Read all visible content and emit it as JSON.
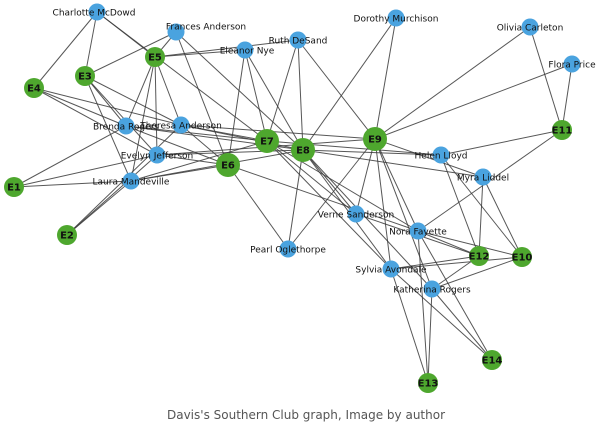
{
  "caption": "Davis's Southern Club graph, Image by author",
  "colors": {
    "woman": "#4aa3df",
    "event": "#4ea72e",
    "edge": "#3a3a3a",
    "label": "#111111"
  },
  "graph": {
    "women": [
      "Charlotte McDowd",
      "Frances Anderson",
      "Eleanor Nye",
      "Ruth DeSand",
      "Dorothy Murchison",
      "Olivia Carleton",
      "Flora Price",
      "Brenda Rogers",
      "Theresa Anderson",
      "Evelyn Jefferson",
      "Laura Mandeville",
      "Helen Lloyd",
      "Myra Liddel",
      "Verne Sanderson",
      "Nora Fayette",
      "Pearl Oglethorpe",
      "Sylvia Avondale",
      "Katherina Rogers"
    ],
    "events": [
      "E1",
      "E2",
      "E3",
      "E4",
      "E5",
      "E6",
      "E7",
      "E8",
      "E9",
      "E10",
      "E11",
      "E12",
      "E13",
      "E14"
    ],
    "edges": [
      [
        "Evelyn Jefferson",
        "E1"
      ],
      [
        "Evelyn Jefferson",
        "E2"
      ],
      [
        "Evelyn Jefferson",
        "E3"
      ],
      [
        "Evelyn Jefferson",
        "E4"
      ],
      [
        "Evelyn Jefferson",
        "E5"
      ],
      [
        "Evelyn Jefferson",
        "E6"
      ],
      [
        "Evelyn Jefferson",
        "E8"
      ],
      [
        "Evelyn Jefferson",
        "E9"
      ],
      [
        "Laura Mandeville",
        "E1"
      ],
      [
        "Laura Mandeville",
        "E2"
      ],
      [
        "Laura Mandeville",
        "E3"
      ],
      [
        "Laura Mandeville",
        "E5"
      ],
      [
        "Laura Mandeville",
        "E6"
      ],
      [
        "Laura Mandeville",
        "E7"
      ],
      [
        "Laura Mandeville",
        "E8"
      ],
      [
        "Theresa Anderson",
        "E2"
      ],
      [
        "Theresa Anderson",
        "E3"
      ],
      [
        "Theresa Anderson",
        "E4"
      ],
      [
        "Theresa Anderson",
        "E5"
      ],
      [
        "Theresa Anderson",
        "E6"
      ],
      [
        "Theresa Anderson",
        "E7"
      ],
      [
        "Theresa Anderson",
        "E8"
      ],
      [
        "Theresa Anderson",
        "E9"
      ],
      [
        "Brenda Rogers",
        "E1"
      ],
      [
        "Brenda Rogers",
        "E3"
      ],
      [
        "Brenda Rogers",
        "E4"
      ],
      [
        "Brenda Rogers",
        "E5"
      ],
      [
        "Brenda Rogers",
        "E6"
      ],
      [
        "Brenda Rogers",
        "E7"
      ],
      [
        "Brenda Rogers",
        "E8"
      ],
      [
        "Charlotte McDowd",
        "E3"
      ],
      [
        "Charlotte McDowd",
        "E4"
      ],
      [
        "Charlotte McDowd",
        "E5"
      ],
      [
        "Charlotte McDowd",
        "E7"
      ],
      [
        "Frances Anderson",
        "E3"
      ],
      [
        "Frances Anderson",
        "E5"
      ],
      [
        "Frances Anderson",
        "E6"
      ],
      [
        "Frances Anderson",
        "E8"
      ],
      [
        "Eleanor Nye",
        "E5"
      ],
      [
        "Eleanor Nye",
        "E6"
      ],
      [
        "Eleanor Nye",
        "E7"
      ],
      [
        "Eleanor Nye",
        "E8"
      ],
      [
        "Pearl Oglethorpe",
        "E6"
      ],
      [
        "Pearl Oglethorpe",
        "E8"
      ],
      [
        "Pearl Oglethorpe",
        "E9"
      ],
      [
        "Ruth DeSand",
        "E5"
      ],
      [
        "Ruth DeSand",
        "E7"
      ],
      [
        "Ruth DeSand",
        "E8"
      ],
      [
        "Ruth DeSand",
        "E9"
      ],
      [
        "Verne Sanderson",
        "E7"
      ],
      [
        "Verne Sanderson",
        "E8"
      ],
      [
        "Verne Sanderson",
        "E9"
      ],
      [
        "Verne Sanderson",
        "E12"
      ],
      [
        "Myra Liddel",
        "E8"
      ],
      [
        "Myra Liddel",
        "E9"
      ],
      [
        "Myra Liddel",
        "E10"
      ],
      [
        "Myra Liddel",
        "E12"
      ],
      [
        "Katherina Rogers",
        "E8"
      ],
      [
        "Katherina Rogers",
        "E9"
      ],
      [
        "Katherina Rogers",
        "E10"
      ],
      [
        "Katherina Rogers",
        "E12"
      ],
      [
        "Katherina Rogers",
        "E13"
      ],
      [
        "Katherina Rogers",
        "E14"
      ],
      [
        "Sylvia Avondale",
        "E7"
      ],
      [
        "Sylvia Avondale",
        "E8"
      ],
      [
        "Sylvia Avondale",
        "E9"
      ],
      [
        "Sylvia Avondale",
        "E10"
      ],
      [
        "Sylvia Avondale",
        "E12"
      ],
      [
        "Sylvia Avondale",
        "E13"
      ],
      [
        "Sylvia Avondale",
        "E14"
      ],
      [
        "Nora Fayette",
        "E6"
      ],
      [
        "Nora Fayette",
        "E7"
      ],
      [
        "Nora Fayette",
        "E9"
      ],
      [
        "Nora Fayette",
        "E10"
      ],
      [
        "Nora Fayette",
        "E11"
      ],
      [
        "Nora Fayette",
        "E12"
      ],
      [
        "Nora Fayette",
        "E13"
      ],
      [
        "Nora Fayette",
        "E14"
      ],
      [
        "Helen Lloyd",
        "E7"
      ],
      [
        "Helen Lloyd",
        "E8"
      ],
      [
        "Helen Lloyd",
        "E10"
      ],
      [
        "Helen Lloyd",
        "E11"
      ],
      [
        "Helen Lloyd",
        "E12"
      ],
      [
        "Dorothy Murchison",
        "E8"
      ],
      [
        "Dorothy Murchison",
        "E9"
      ],
      [
        "Olivia Carleton",
        "E9"
      ],
      [
        "Olivia Carleton",
        "E11"
      ],
      [
        "Flora Price",
        "E9"
      ],
      [
        "Flora Price",
        "E11"
      ]
    ]
  }
}
